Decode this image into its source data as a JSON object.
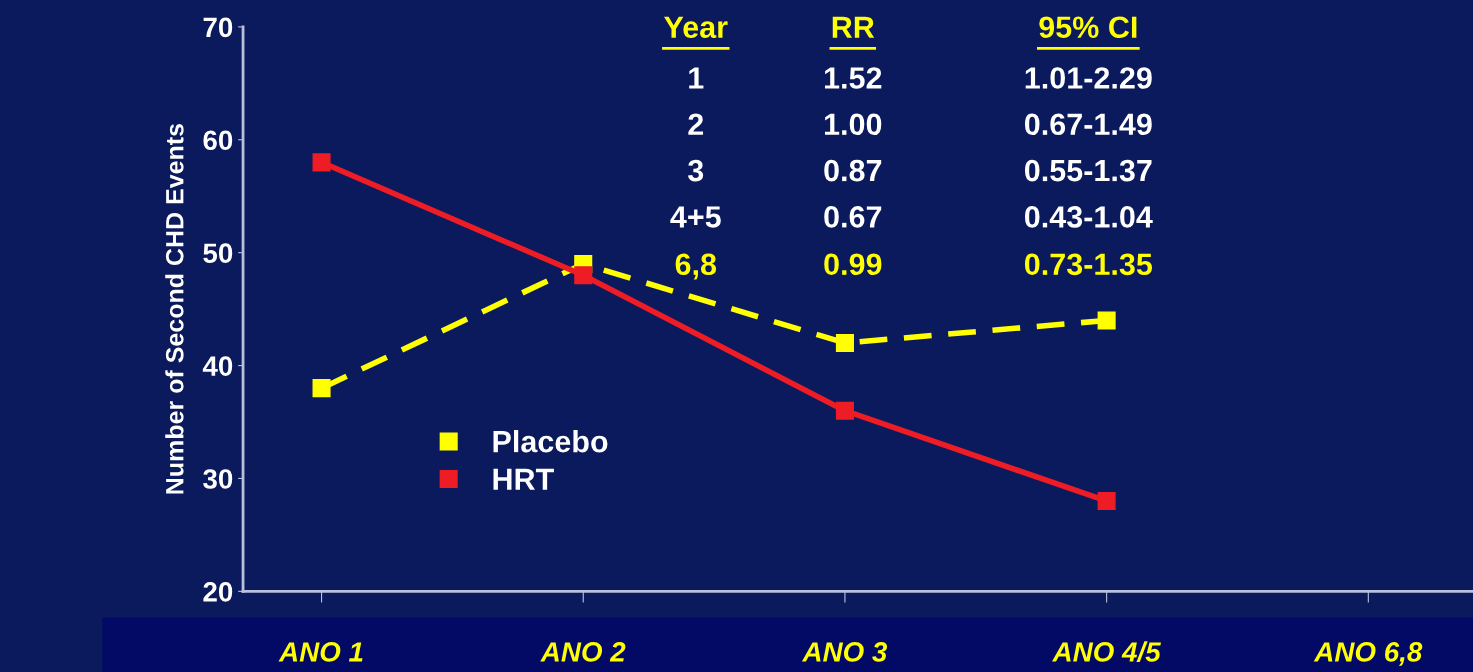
{
  "chart_data": {
    "type": "line",
    "ylabel": "Number of Second CHD Events",
    "categories": [
      "ANO 1",
      "ANO 2",
      "ANO 3",
      "ANO 4/5",
      "ANO 6,8"
    ],
    "series": [
      {
        "name": "Placebo",
        "color": "#ffff00",
        "line_style": "dashed",
        "values": [
          38,
          49,
          42,
          44,
          null
        ]
      },
      {
        "name": "HRT",
        "color": "#ee1c24",
        "line_style": "solid",
        "values": [
          58,
          48,
          36,
          28,
          null
        ]
      }
    ],
    "ylim": [
      20,
      70
    ],
    "yticks": [
      20,
      30,
      40,
      50,
      60,
      70
    ],
    "marker": "square",
    "grid": false,
    "legend": "lower left",
    "annotations": [
      "Year",
      "RR",
      "95% CI",
      "1",
      "1.52",
      "1.01-2.29",
      "2",
      "1.00",
      "0.67-1.49",
      "3",
      "0.87",
      "0.55-1.37",
      "4+5",
      "0.67",
      "0.43-1.04",
      "6,8",
      "0.99",
      "0.73-1.35"
    ]
  }
}
